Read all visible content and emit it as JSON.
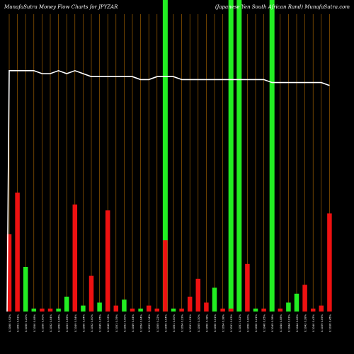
{
  "header": {
    "left": "MunafaSutra  Money Flow  Charts for JPYZAR",
    "right": "(Japanese   Yen   South African   Rand) MunafaSutra.com"
  },
  "colors": {
    "background": "#000000",
    "grid": "#b36b00",
    "up": "#22ee22",
    "down": "#ee1111",
    "line": "#ffffff"
  },
  "chart_data": {
    "type": "bar",
    "title": "MunafaSutra  Money Flow  Charts for JPYZAR",
    "bar_scale": [
      0,
      100
    ],
    "line_scale": [
      0,
      100
    ],
    "categories": [
      "0.1060 0.92%",
      "0.1051 0.91%",
      "0.1050 0.20%",
      "0.1050 0.08%",
      "0.1050 0.00%",
      "0.1052 0.04%",
      "0.1052 0.06%",
      "0.1053 0.69%",
      "0.1049 0.54%",
      "0.1060 0.94%",
      "0.1052 0.00%",
      "0.1049 0.05%",
      "0.1046 0.13%",
      "0.1051 0.39%",
      "0.1053 0.90%",
      "0.1049 0.04%",
      "0.1054 0.04%",
      "0.1053 0.14%",
      "0.1055 0.22%",
      "0.1049 0.04%",
      "0.1051 0.00%",
      "0.1054 0.23%",
      "0.1051 0.21%",
      "0.1055 0.30%",
      "0.1050 0.18%",
      "0.1050 0.01%",
      "0.1054 0.38%",
      "0.1051 0.03%",
      "0.1051 0.02%",
      "0.1050 0.00%",
      "0.1050 0.21%",
      "0.1046 0.05%",
      "0.1045 0.38%",
      "0.1044 0.08%",
      "0.1044 0.01%",
      "0.1044 0.06%",
      "0.1042 0.28%",
      "0.1040 0.47%",
      "0.1039 0.09%",
      "0.1036 0.45%"
    ],
    "series": [
      {
        "values": [
          26,
          40,
          15,
          1,
          1,
          1,
          1,
          5,
          36,
          2,
          12,
          3,
          34,
          2,
          4,
          1,
          1,
          2,
          1,
          24,
          1,
          1,
          5,
          11,
          3,
          8,
          1,
          1,
          1,
          16,
          1,
          1,
          7,
          1,
          3,
          6,
          9,
          1,
          2,
          33
        ],
        "direction": [
          "down",
          "down",
          "up",
          "up",
          "down",
          "down",
          "up",
          "up",
          "down",
          "up",
          "down",
          "up",
          "down",
          "down",
          "up",
          "down",
          "up",
          "down",
          "down",
          "down",
          "up",
          "down",
          "down",
          "down",
          "down",
          "up",
          "down",
          "down",
          "up",
          "down",
          "up",
          "down",
          "up",
          "down",
          "up",
          "up",
          "down",
          "down",
          "down",
          "down"
        ]
      },
      {
        "values": [
          81,
          81,
          81,
          81,
          80,
          80,
          81,
          80,
          81,
          80,
          79,
          79,
          79,
          79,
          79,
          79,
          78,
          78,
          79,
          79,
          79,
          78,
          78,
          78,
          78,
          78,
          78,
          78,
          78,
          78,
          78,
          78,
          77,
          77,
          77,
          77,
          77,
          77,
          77,
          76
        ]
      }
    ],
    "highlight_indices": [
      19,
      27,
      28,
      32
    ]
  }
}
